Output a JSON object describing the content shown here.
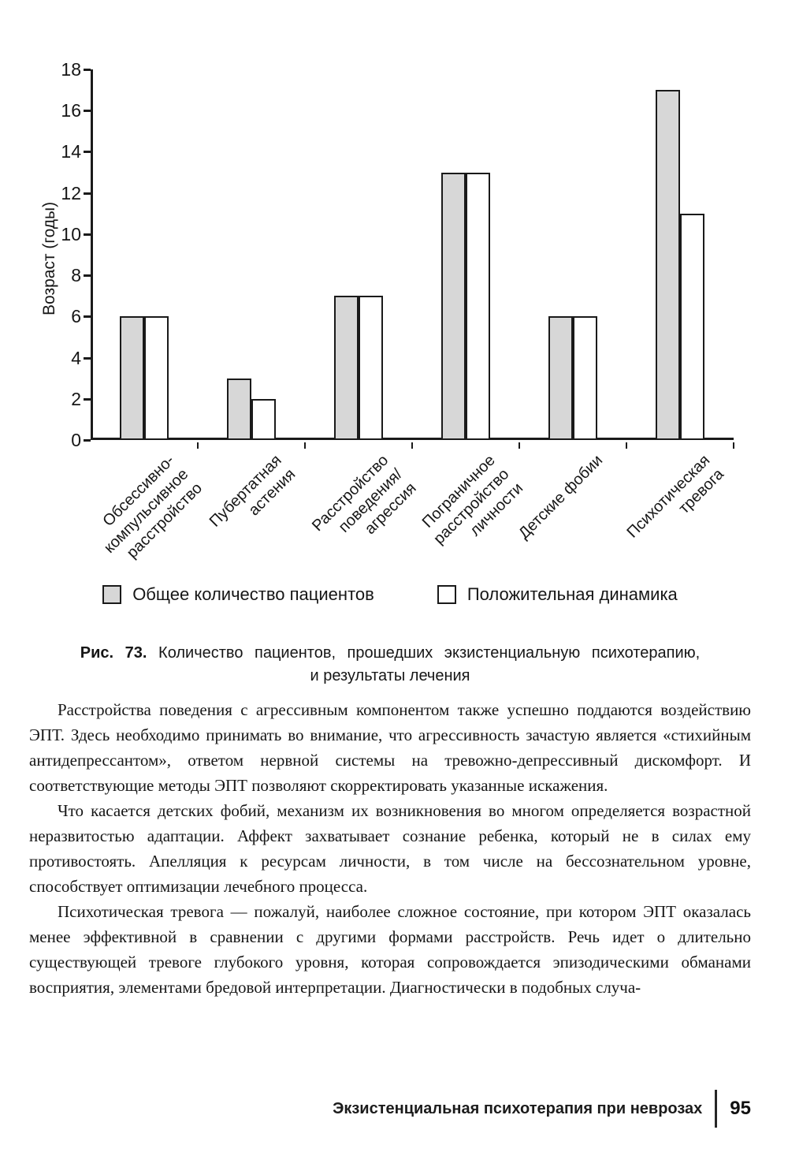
{
  "chart_data": {
    "type": "bar",
    "title": "",
    "xlabel": "",
    "ylabel": "Возраст (годы)",
    "ylim": [
      0,
      18
    ],
    "ytick_step": 2,
    "grid": false,
    "legend_position": "bottom",
    "categories": [
      "Обсессивно-компульсивное расстройство",
      "Пубертатная астения",
      "Расстройство поведения/агрессия",
      "Пограничное расстройство личности",
      "Детские фобии",
      "Психотическая тревога"
    ],
    "category_label_lines": [
      [
        "Обсессивно-",
        "компульсивное",
        "расстройство"
      ],
      [
        "Пубертатная",
        "астения"
      ],
      [
        "Расстройство",
        "поведения/",
        "агрессия"
      ],
      [
        "Пограничное",
        "расстройство",
        "личности"
      ],
      [
        "Детские фобии"
      ],
      [
        "Психотическая",
        "тревога"
      ]
    ],
    "series": [
      {
        "name": "Общее количество пациентов",
        "color": "#d7d7d7",
        "values": [
          6,
          3,
          7,
          13,
          6,
          17
        ]
      },
      {
        "name": "Положительная динамика",
        "color": "#ffffff",
        "values": [
          6,
          2,
          7,
          13,
          6,
          11
        ]
      }
    ]
  },
  "caption": {
    "label": "Рис. 73.",
    "line1": "Количество пациентов, прошедших экзистенциальную психотерапию,",
    "line2": "и результаты лечения"
  },
  "paragraphs": [
    "Расстройства поведения с агрессивным компонентом также успешно поддаются воздействию ЭПТ. Здесь необходимо принимать во внимание, что агрессивность зачастую является «стихийным антидепрессантом», ответом нервной системы на тревожно-депрессивный дискомфорт. И соответствующие методы ЭПТ позволяют скорректировать указанные искажения.",
    "Что касается детских фобий, механизм их возникновения во многом определяется возрастной неразвитостью адаптации. Аффект захватывает сознание ребенка, который не в силах ему противостоять. Апелляция к ресурсам личности, в том числе на бессознательном уровне, способствует оптимизации лечебного процесса.",
    "Психотическая тревога — пожалуй, наиболее сложное состояние, при котором ЭПТ оказалась менее эффективной в сравнении с другими формами расстройств. Речь идет о длительно существующей тревоге глубокого уровня, которая сопровождается эпизодическими обманами восприятия, элементами бредовой интерпретации. Диагностически в подобных случа-"
  ],
  "footer": {
    "running_title": "Экзистенциальная психотерапия при неврозах",
    "page_number": "95"
  }
}
